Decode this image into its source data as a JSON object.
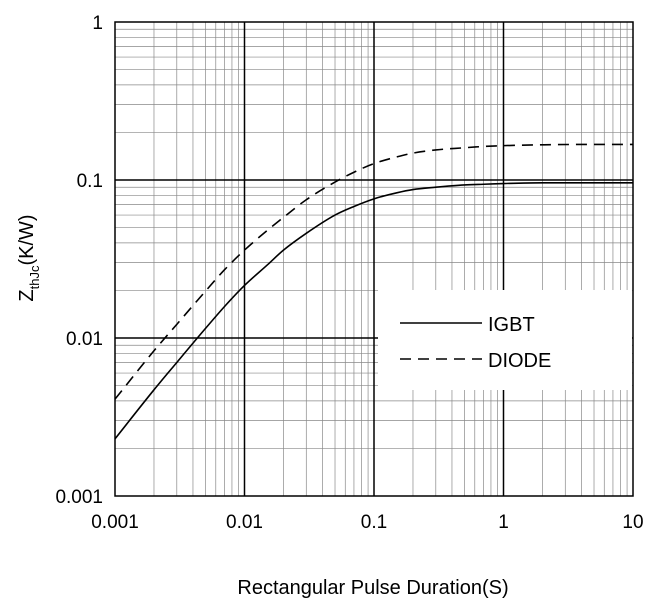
{
  "chart_data": {
    "type": "line",
    "title": "",
    "xlabel": "Rectangular Pulse Duration(S)",
    "ylabel": {
      "main": "Z",
      "sub": "thJc",
      "unit": "(K/W)"
    },
    "xscale": "log",
    "yscale": "log",
    "xlim": [
      0.001,
      10
    ],
    "ylim": [
      0.001,
      1
    ],
    "x_ticks": [
      "0.001",
      "0.01",
      "0.1",
      "1",
      "10"
    ],
    "y_ticks": [
      "0.001",
      "0.01",
      "0.1",
      "1"
    ],
    "grid": true,
    "legend": "center-right",
    "series": [
      {
        "name": "IGBT",
        "style": "solid",
        "x": [
          0.001,
          0.002,
          0.003,
          0.005,
          0.007,
          0.01,
          0.015,
          0.02,
          0.03,
          0.05,
          0.07,
          0.1,
          0.15,
          0.2,
          0.3,
          0.5,
          0.7,
          1,
          2,
          5,
          10
        ],
        "y": [
          0.0023,
          0.0047,
          0.007,
          0.0115,
          0.0158,
          0.0215,
          0.029,
          0.036,
          0.046,
          0.06,
          0.068,
          0.076,
          0.083,
          0.087,
          0.09,
          0.093,
          0.094,
          0.095,
          0.096,
          0.096,
          0.096
        ]
      },
      {
        "name": "DIODE",
        "style": "dashed",
        "x": [
          0.001,
          0.002,
          0.003,
          0.005,
          0.007,
          0.01,
          0.015,
          0.02,
          0.03,
          0.05,
          0.07,
          0.1,
          0.15,
          0.2,
          0.3,
          0.5,
          0.7,
          1,
          2,
          5,
          10
        ],
        "y": [
          0.0041,
          0.0083,
          0.0122,
          0.0198,
          0.027,
          0.036,
          0.048,
          0.058,
          0.075,
          0.097,
          0.112,
          0.127,
          0.14,
          0.148,
          0.155,
          0.16,
          0.163,
          0.165,
          0.167,
          0.168,
          0.168
        ]
      }
    ]
  },
  "colors": {
    "line": "#000000",
    "grid_minor": "#888888",
    "grid_major": "#000000",
    "background": "#ffffff"
  }
}
